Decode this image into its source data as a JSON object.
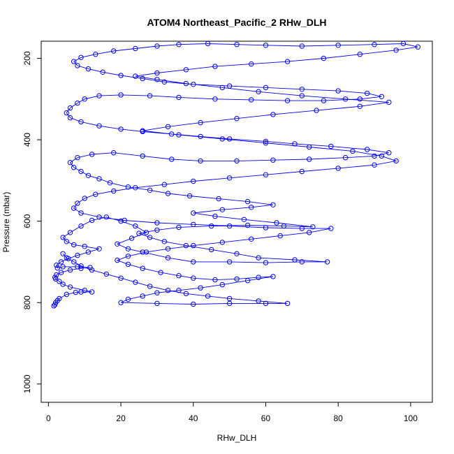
{
  "chart_data": {
    "type": "scatter",
    "title": "ATOM4 Northeast_Pacific_2 RHw_DLH",
    "xlabel": "RHw_DLH",
    "ylabel": "Pressure (mbar)",
    "xlim": [
      -2,
      106
    ],
    "ylim": [
      1045,
      158
    ],
    "y_reversed": true,
    "x_ticks": [
      "0",
      "20",
      "40",
      "60",
      "80",
      "100"
    ],
    "y_ticks": [
      "200",
      "400",
      "600",
      "800",
      "1000"
    ],
    "grid": false,
    "legend": "none",
    "point_style": "open-circle",
    "connected": true,
    "color": "#0000ff",
    "series": [
      {
        "points": [
          [
            1.5,
            808
          ],
          [
            1.8,
            805
          ],
          [
            2.0,
            800
          ],
          [
            2.5,
            795
          ],
          [
            3.0,
            790
          ],
          [
            5.0,
            780
          ],
          [
            7.5,
            775
          ],
          [
            9.0,
            774
          ],
          [
            12.0,
            774
          ],
          [
            10.0,
            770
          ],
          [
            6.0,
            762
          ],
          [
            4.0,
            755
          ],
          [
            3.0,
            748
          ],
          [
            2.0,
            742
          ],
          [
            1.8,
            738
          ],
          [
            2.2,
            732
          ],
          [
            3.5,
            726
          ],
          [
            6.0,
            720
          ],
          [
            9.0,
            716
          ],
          [
            11.5,
            714
          ],
          [
            8.0,
            712
          ],
          [
            4.0,
            712
          ],
          [
            2.5,
            715
          ],
          [
            2.2,
            708
          ],
          [
            3.5,
            700
          ],
          [
            5.5,
            692
          ],
          [
            8.0,
            684
          ],
          [
            11.0,
            676
          ],
          [
            14.0,
            668
          ],
          [
            10.0,
            662
          ],
          [
            7.0,
            658
          ],
          [
            5.0,
            650
          ],
          [
            4.0,
            640
          ],
          [
            6.0,
            628
          ],
          [
            9.0,
            612
          ],
          [
            12.0,
            598
          ],
          [
            16.0,
            590
          ],
          [
            20.0,
            600
          ],
          [
            24.0,
            612
          ],
          [
            27.0,
            628
          ],
          [
            23.0,
            642
          ],
          [
            19.0,
            656
          ],
          [
            22.0,
            668
          ],
          [
            26.0,
            676
          ],
          [
            33.0,
            690
          ],
          [
            40.0,
            700
          ],
          [
            50.0,
            700
          ],
          [
            60.0,
            702
          ],
          [
            70.0,
            700
          ],
          [
            77.0,
            700
          ],
          [
            68.0,
            695
          ],
          [
            58.0,
            690
          ],
          [
            52.0,
            680
          ],
          [
            45.0,
            670
          ],
          [
            38.0,
            660
          ],
          [
            32.0,
            650
          ],
          [
            28.0,
            640
          ],
          [
            25.0,
            630
          ],
          [
            30.0,
            622
          ],
          [
            36.0,
            615
          ],
          [
            45.0,
            612
          ],
          [
            55.0,
            610
          ],
          [
            65.0,
            612
          ],
          [
            73.0,
            614
          ],
          [
            63.0,
            604
          ],
          [
            54.0,
            596
          ],
          [
            46.0,
            588
          ],
          [
            40.0,
            580
          ],
          [
            48.0,
            572
          ],
          [
            56.0,
            566
          ],
          [
            62.0,
            560
          ],
          [
            55.0,
            552
          ],
          [
            47.0,
            545
          ],
          [
            39.0,
            538
          ],
          [
            33.0,
            532
          ],
          [
            28.0,
            524
          ],
          [
            22.0,
            516
          ],
          [
            17.0,
            506
          ],
          [
            14.0,
            496
          ],
          [
            11.0,
            488
          ],
          [
            9.0,
            478
          ],
          [
            7.0,
            468
          ],
          [
            6.0,
            456
          ],
          [
            8.0,
            444
          ],
          [
            12.0,
            436
          ],
          [
            18.0,
            432
          ],
          [
            26.0,
            440
          ],
          [
            34.0,
            448
          ],
          [
            42.0,
            452
          ],
          [
            52.0,
            452
          ],
          [
            62.0,
            450
          ],
          [
            72.0,
            448
          ],
          [
            82.0,
            444
          ],
          [
            90.0,
            440
          ],
          [
            94.0,
            432
          ],
          [
            88.0,
            424
          ],
          [
            78.0,
            416
          ],
          [
            68.0,
            410
          ],
          [
            60.0,
            404
          ],
          [
            50.0,
            398
          ],
          [
            42.0,
            392
          ],
          [
            34.0,
            386
          ],
          [
            26.0,
            380
          ],
          [
            20.0,
            374
          ],
          [
            14.0,
            366
          ],
          [
            9.0,
            356
          ],
          [
            6.0,
            346
          ],
          [
            5.0,
            334
          ],
          [
            6.0,
            322
          ],
          [
            8.0,
            310
          ],
          [
            10.0,
            300
          ],
          [
            14.0,
            292
          ],
          [
            20.0,
            290
          ],
          [
            28.0,
            292
          ],
          [
            36.0,
            296
          ],
          [
            46.0,
            300
          ],
          [
            56.0,
            302
          ],
          [
            66.0,
            304
          ],
          [
            76.0,
            304
          ],
          [
            86.0,
            300
          ],
          [
            92.0,
            294
          ],
          [
            88.0,
            286
          ],
          [
            80.0,
            280
          ],
          [
            70.0,
            276
          ],
          [
            60.0,
            272
          ],
          [
            50.0,
            268
          ],
          [
            40.0,
            264
          ],
          [
            32.0,
            258
          ],
          [
            26.0,
            250
          ],
          [
            20.0,
            242
          ],
          [
            15.0,
            234
          ],
          [
            11.0,
            226
          ],
          [
            8.0,
            218
          ],
          [
            7.0,
            208
          ],
          [
            9.0,
            198
          ],
          [
            13.0,
            190
          ],
          [
            18.0,
            182
          ],
          [
            24.0,
            176
          ],
          [
            30.0,
            170
          ],
          [
            36.0,
            166
          ],
          [
            44.0,
            164
          ],
          [
            52.0,
            166
          ],
          [
            60.0,
            168
          ],
          [
            70.0,
            170
          ],
          [
            80.0,
            168
          ],
          [
            90.0,
            166
          ],
          [
            98.0,
            164
          ],
          [
            102.0,
            172
          ],
          [
            96.0,
            180
          ],
          [
            86.0,
            190
          ],
          [
            76.0,
            200
          ],
          [
            66.0,
            208
          ],
          [
            56.0,
            214
          ],
          [
            46.0,
            220
          ],
          [
            38.0,
            228
          ],
          [
            30.0,
            236
          ],
          [
            24.0,
            244
          ],
          [
            30.0,
            252
          ],
          [
            38.0,
            262
          ],
          [
            48.0,
            272
          ],
          [
            58.0,
            282
          ],
          [
            70.0,
            292
          ],
          [
            82.0,
            300
          ],
          [
            94.0,
            308
          ],
          [
            86.0,
            318
          ],
          [
            74.0,
            328
          ],
          [
            62.0,
            338
          ],
          [
            52.0,
            348
          ],
          [
            42.0,
            358
          ],
          [
            33.0,
            368
          ],
          [
            26.0,
            378
          ],
          [
            36.0,
            388
          ],
          [
            48.0,
            398
          ],
          [
            60.0,
            408
          ],
          [
            72.0,
            418
          ],
          [
            84.0,
            428
          ],
          [
            92.0,
            440
          ],
          [
            96.0,
            452
          ],
          [
            90.0,
            462
          ],
          [
            80.0,
            470
          ],
          [
            70.0,
            478
          ],
          [
            60.0,
            486
          ],
          [
            50.0,
            494
          ],
          [
            40.0,
            502
          ],
          [
            32.0,
            510
          ],
          [
            24.0,
            518
          ],
          [
            18.0,
            526
          ],
          [
            13.0,
            534
          ],
          [
            10.0,
            544
          ],
          [
            8.0,
            556
          ],
          [
            7.0,
            568
          ],
          [
            9.0,
            580
          ],
          [
            14.0,
            590
          ],
          [
            21.0,
            598
          ],
          [
            30.0,
            604
          ],
          [
            40.0,
            608
          ],
          [
            50.0,
            612
          ],
          [
            60.0,
            616
          ],
          [
            70.0,
            618
          ],
          [
            78.0,
            618
          ],
          [
            72.0,
            628
          ],
          [
            64.0,
            636
          ],
          [
            56.0,
            644
          ],
          [
            48.0,
            652
          ],
          [
            40.0,
            660
          ],
          [
            33.0,
            668
          ],
          [
            27.0,
            676
          ],
          [
            22.0,
            686
          ],
          [
            19.0,
            696
          ],
          [
            22.0,
            706
          ],
          [
            26.0,
            716
          ],
          [
            31.0,
            726
          ],
          [
            36.0,
            734
          ],
          [
            40.0,
            740
          ],
          [
            46.0,
            744
          ],
          [
            52.0,
            742
          ],
          [
            58.0,
            738
          ],
          [
            62.0,
            736
          ],
          [
            55.0,
            746
          ],
          [
            48.0,
            756
          ],
          [
            42.0,
            764
          ],
          [
            36.0,
            770
          ],
          [
            30.0,
            776
          ],
          [
            26.0,
            784
          ],
          [
            22.0,
            792
          ],
          [
            20.0,
            800
          ],
          [
            30.0,
            802
          ],
          [
            40.0,
            804
          ],
          [
            50.0,
            802
          ],
          [
            60.0,
            802
          ],
          [
            66.0,
            802
          ],
          [
            58.0,
            796
          ],
          [
            50.0,
            790
          ],
          [
            44.0,
            784
          ],
          [
            38.0,
            778
          ],
          [
            33.0,
            770
          ],
          [
            28.0,
            760
          ],
          [
            24.0,
            750
          ],
          [
            20.0,
            740
          ],
          [
            16.0,
            730
          ],
          [
            12.0,
            720
          ],
          [
            9.0,
            710
          ],
          [
            7.0,
            700
          ],
          [
            5.0,
            690
          ],
          [
            4.0,
            680
          ]
        ]
      }
    ]
  }
}
